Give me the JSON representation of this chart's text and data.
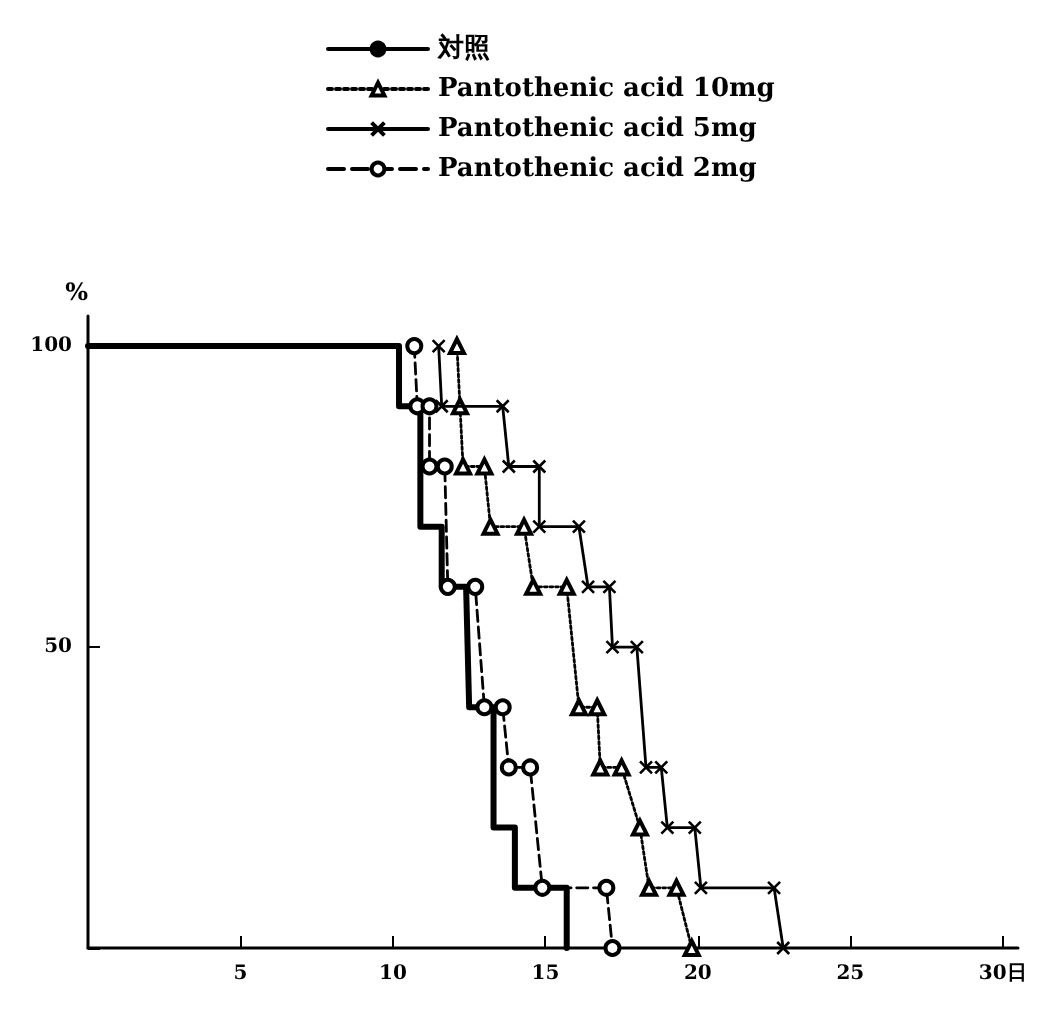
{
  "chart_data": {
    "type": "line",
    "ylabel": "%",
    "xlim": [
      0,
      30.5
    ],
    "xticks": [
      5,
      10,
      15,
      20,
      25,
      {
        "value": 30,
        "label": "30日"
      }
    ],
    "ylim": [
      0,
      105
    ],
    "yticks": [
      {
        "value": 0,
        "label": null
      },
      50,
      100
    ],
    "grid": false,
    "legend": "top",
    "series": [
      {
        "name": "対照",
        "color": "#000000",
        "marker": "none",
        "line_style": "solid",
        "x": [
          0,
          10.2,
          10.2,
          10.9,
          10.9,
          11.6,
          11.6,
          12.4,
          12.5,
          13.3,
          13.3,
          14.0,
          14.0,
          15.7,
          15.7
        ],
        "values": [
          100,
          100,
          90,
          90,
          70,
          70,
          60,
          60,
          40,
          40,
          20,
          20,
          10,
          10,
          0
        ]
      },
      {
        "name": "Pantothenic acid 10mg",
        "color": "#000000",
        "marker": "triangle",
        "line_style": "dotted",
        "x": [
          12.1,
          12.2,
          12.3,
          13.0,
          13.2,
          14.3,
          14.6,
          15.7,
          16.1,
          16.7,
          16.8,
          17.5,
          18.1,
          18.4,
          19.3,
          19.8
        ],
        "values": [
          100,
          90,
          80,
          80,
          70,
          70,
          60,
          60,
          40,
          40,
          30,
          30,
          20,
          10,
          10,
          0
        ]
      },
      {
        "name": "Pantothenic acid 5mg",
        "color": "#000000",
        "marker": "cross",
        "line_style": "solid",
        "x": [
          11.5,
          11.6,
          13.6,
          13.8,
          14.8,
          14.8,
          16.1,
          16.4,
          17.1,
          17.2,
          18.0,
          18.3,
          18.8,
          19.0,
          19.9,
          20.1,
          22.5,
          22.8
        ],
        "values": [
          100,
          90,
          90,
          80,
          80,
          70,
          70,
          60,
          60,
          50,
          50,
          30,
          30,
          20,
          20,
          10,
          10,
          0
        ]
      },
      {
        "name": "Pantothenic acid 2mg",
        "color": "#000000",
        "marker": "circle",
        "line_style": "dashed",
        "x": [
          10.7,
          10.8,
          11.2,
          11.2,
          11.7,
          11.8,
          12.7,
          13.0,
          13.6,
          13.8,
          14.5,
          14.9,
          17.0,
          17.2
        ],
        "values": [
          100,
          90,
          90,
          80,
          80,
          60,
          60,
          40,
          40,
          30,
          30,
          10,
          10,
          0
        ]
      }
    ]
  }
}
